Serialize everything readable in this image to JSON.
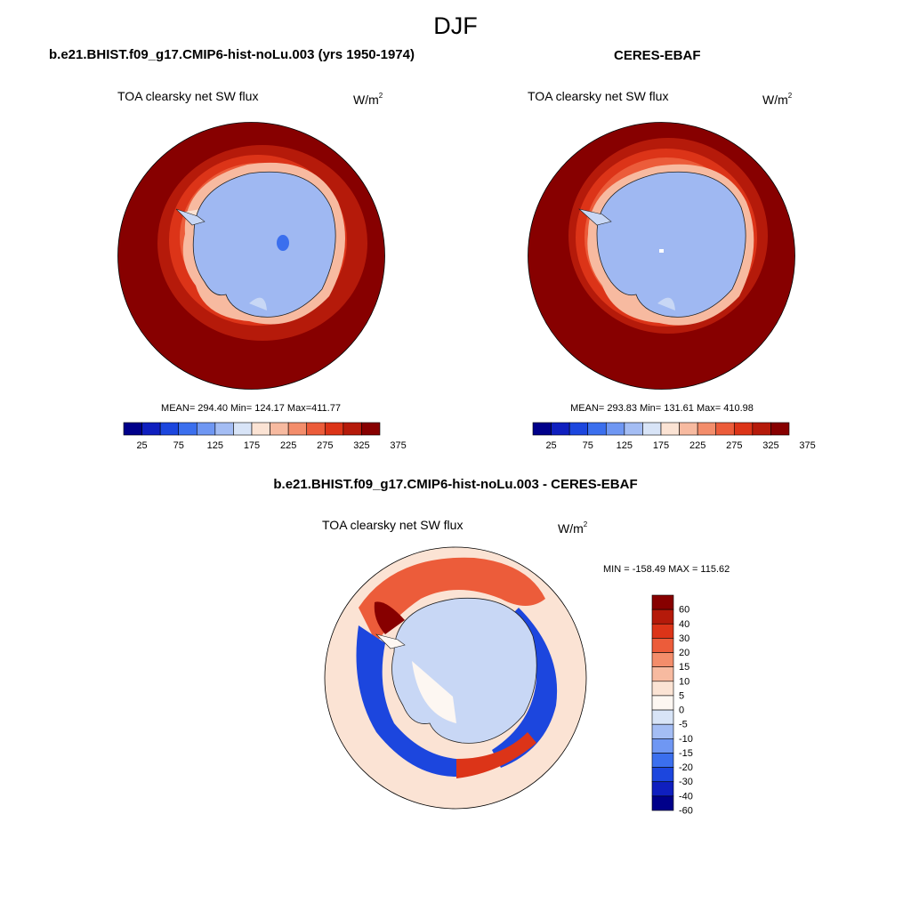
{
  "figure": {
    "season": "DJF",
    "panels": [
      {
        "title": "b.e21.BHIST.f09_g17.CMIP6-hist-noLu.003 (yrs 1950-1974)",
        "variable": "TOA clearsky net SW flux",
        "units_base": "W/m",
        "units_exp": "2",
        "stats": "MEAN= 294.40  Min= 124.17  Max=411.77"
      },
      {
        "title": "CERES-EBAF",
        "variable": "TOA clearsky net SW flux",
        "units_base": "W/m",
        "units_exp": "2",
        "stats": "MEAN= 293.83  Min= 131.61  Max= 410.98"
      },
      {
        "title": "b.e21.BHIST.f09_g17.CMIP6-hist-noLu.003 - CERES-EBAF",
        "variable": "TOA clearsky net SW flux",
        "units_base": "W/m",
        "units_exp": "2",
        "stats": "MIN = -158.49 MAX = 115.62"
      }
    ]
  },
  "colorbars": {
    "abs": {
      "labels": [
        "25",
        "75",
        "125",
        "175",
        "225",
        "275",
        "325",
        "375"
      ],
      "colors": [
        "#00008a",
        "#0f1fbf",
        "#1c46de",
        "#3b6fee",
        "#6f97f3",
        "#a4bdf4",
        "#d8e4f7",
        "#fbe3d4",
        "#f7baa0",
        "#f38d6b",
        "#ec5c3a",
        "#dc3418",
        "#b51a0a",
        "#870000"
      ]
    },
    "diff": {
      "labels": [
        "60",
        "40",
        "30",
        "20",
        "15",
        "10",
        "5",
        "0",
        "-5",
        "-10",
        "-15",
        "-20",
        "-30",
        "-40",
        "-60"
      ],
      "colors": [
        "#870000",
        "#b51a0a",
        "#dc3418",
        "#ec5c3a",
        "#f38d6b",
        "#f7baa0",
        "#fbe3d4",
        "#fdf7f2",
        "#d8e4f7",
        "#a4bdf4",
        "#6f97f3",
        "#3b6fee",
        "#1c46de",
        "#0f1fbf",
        "#00008a"
      ]
    }
  },
  "map_colors": {
    "dark_red": "#870000",
    "red": "#b51a0a",
    "orange_red": "#dc3418",
    "orange": "#ec5c3a",
    "salmon": "#f7baa0",
    "light_salmon": "#fbe3d4",
    "ice_blue": "#9fb8f2",
    "light_blue": "#c8d7f5",
    "deep_blue": "#1c46de",
    "navy": "#00008a"
  }
}
